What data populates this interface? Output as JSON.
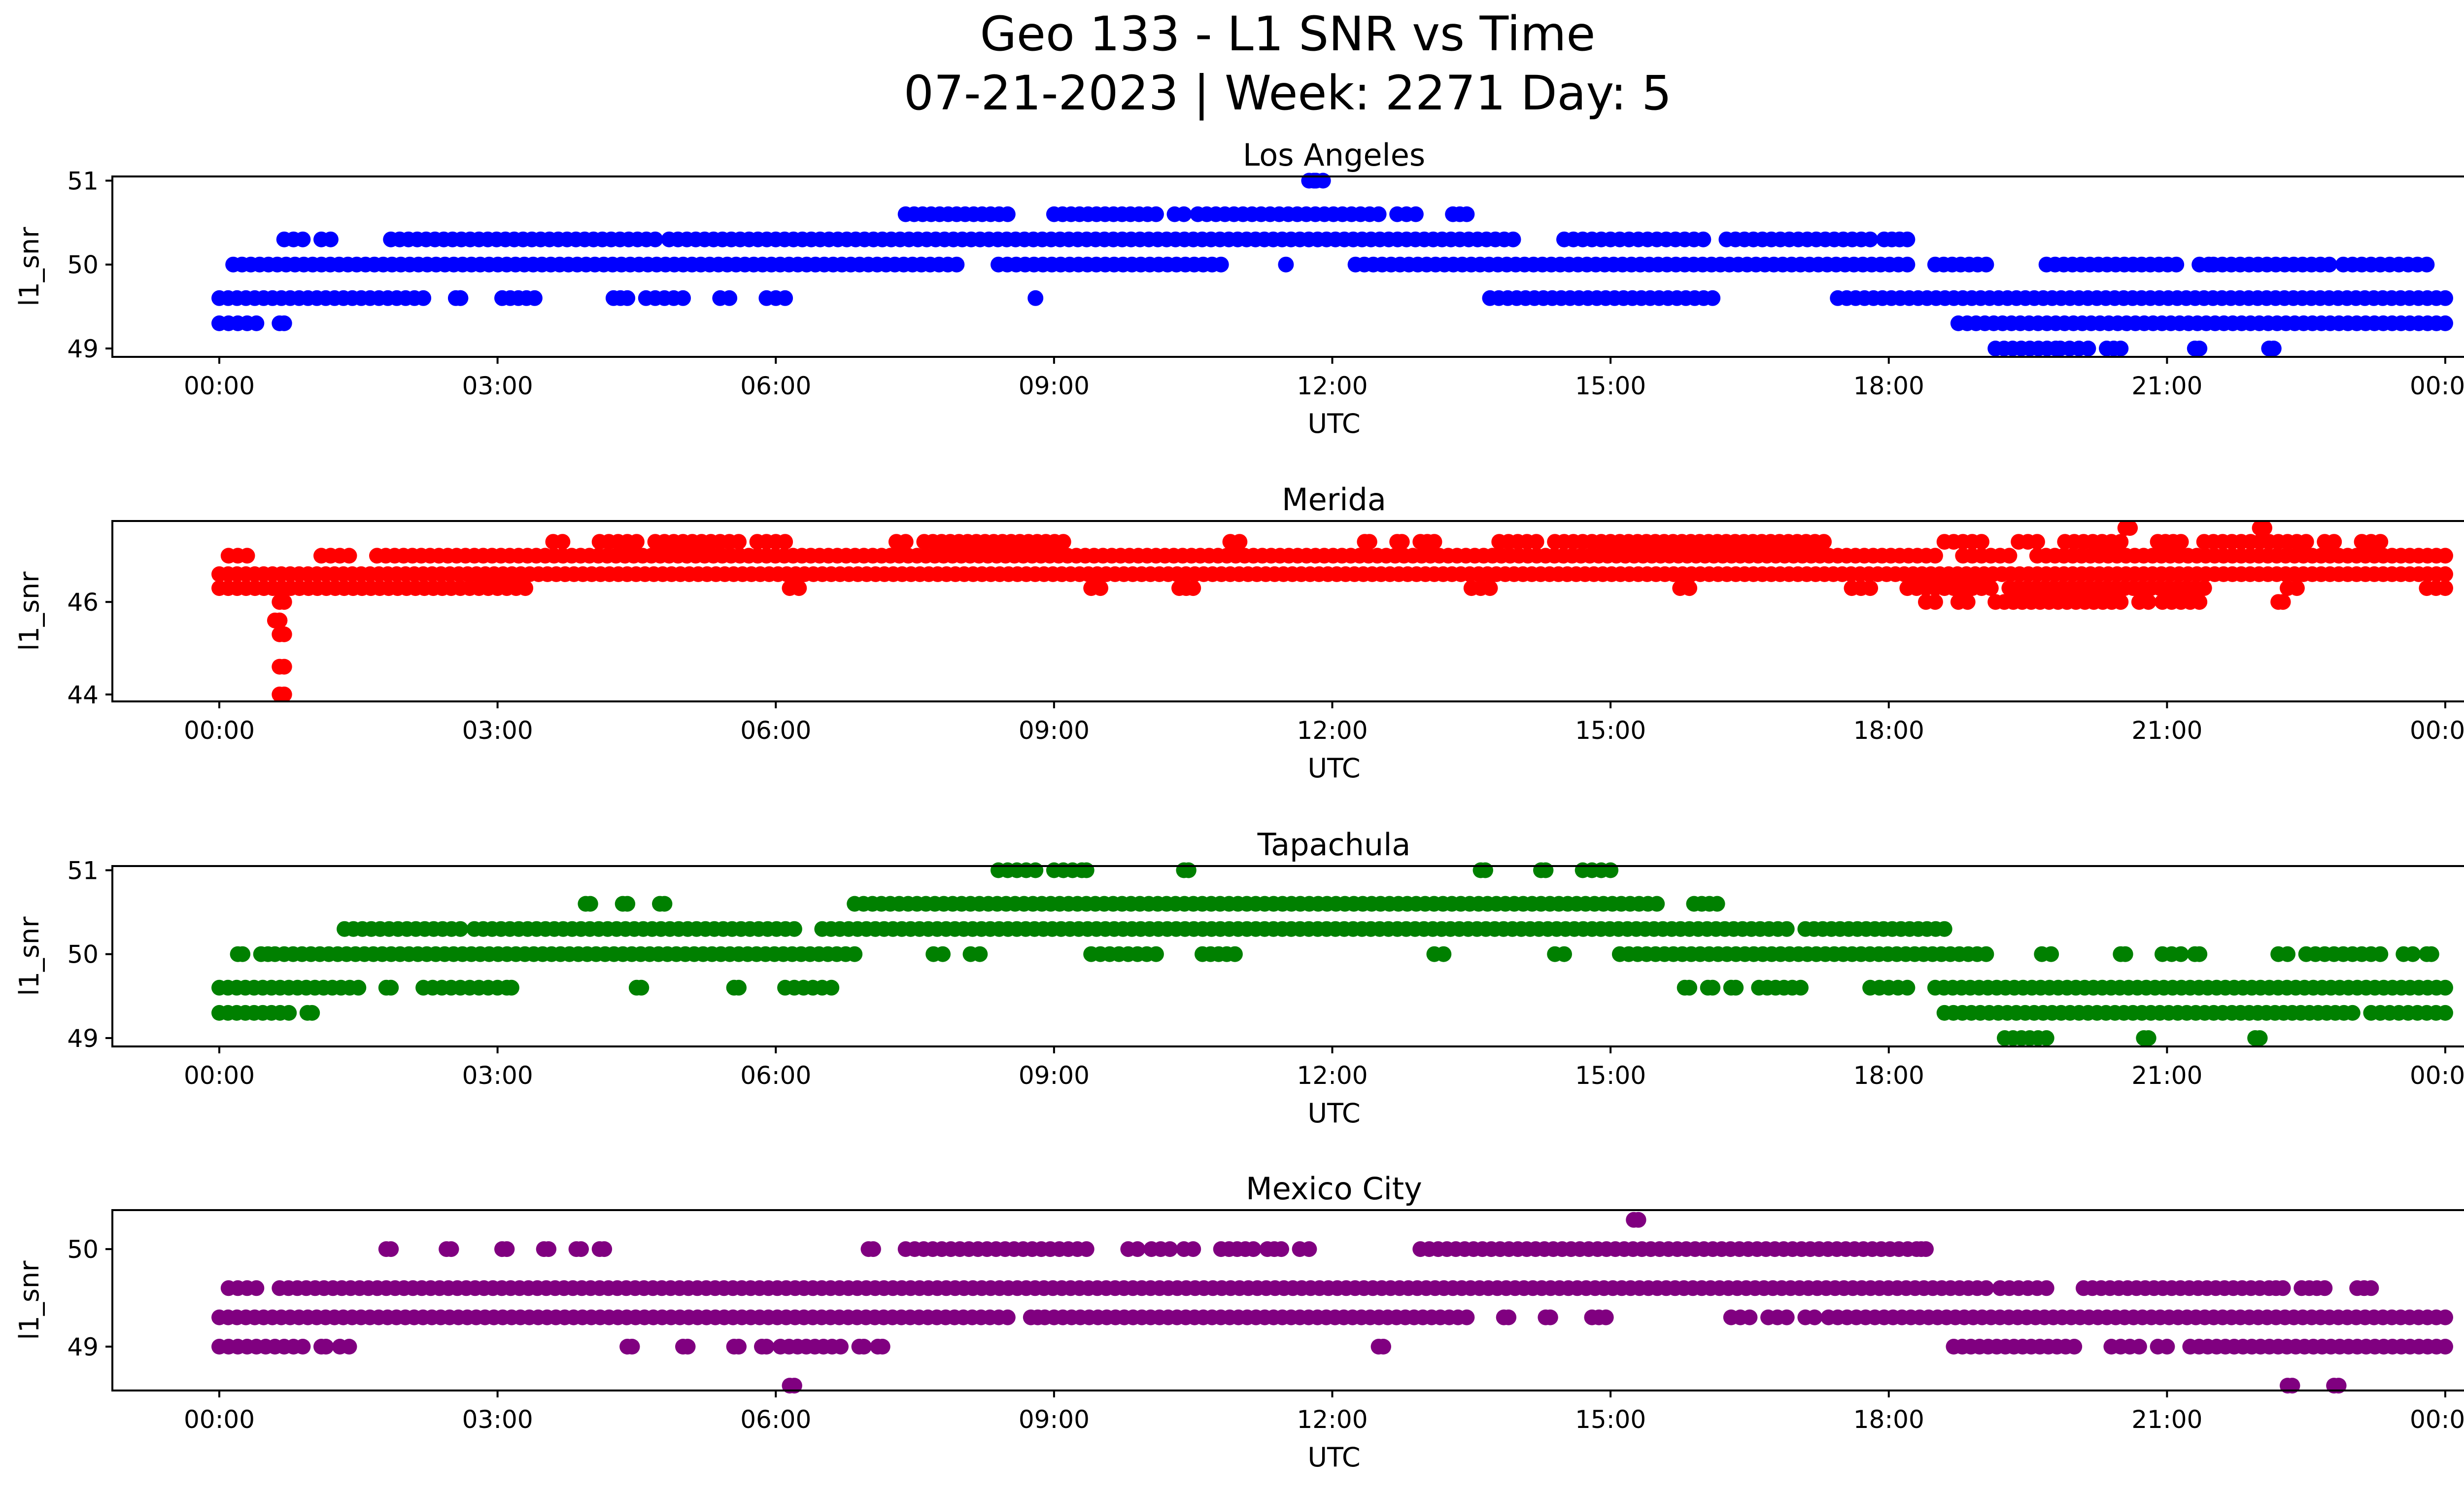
{
  "figure": {
    "title_line1": "Geo 133 - L1 SNR vs Time",
    "title_line2": "07-21-2023 | Week: 2271 Day: 5"
  },
  "chart_data": [
    {
      "type": "scatter",
      "title": "Los Angeles",
      "xlabel": "UTC",
      "ylabel": "l1_snr",
      "color": "#0000ff",
      "xlim": [
        "00:00",
        "24:00"
      ],
      "ylim": [
        48.9,
        51.05
      ],
      "xticks": [
        "00:00",
        "03:00",
        "06:00",
        "09:00",
        "12:00",
        "15:00",
        "18:00",
        "21:00",
        "00:00"
      ],
      "yticks": [
        49,
        50,
        51
      ],
      "bands": [
        {
          "y": 51.0,
          "ranges": [
            [
              11.75,
              11.9
            ]
          ]
        },
        {
          "y": 50.6,
          "ranges": [
            [
              7.4,
              8.5
            ],
            [
              9.0,
              10.1
            ],
            [
              10.3,
              10.4
            ],
            [
              10.55,
              12.5
            ],
            [
              12.7,
              12.9
            ],
            [
              13.3,
              13.45
            ]
          ]
        },
        {
          "y": 50.3,
          "ranges": [
            [
              0.7,
              0.9
            ],
            [
              1.1,
              1.2
            ],
            [
              1.85,
              4.7
            ],
            [
              4.85,
              13.95
            ],
            [
              14.5,
              14.9
            ],
            [
              15.0,
              16.0
            ],
            [
              16.25,
              17.8
            ],
            [
              17.95,
              18.2
            ]
          ]
        },
        {
          "y": 50.0,
          "ranges": [
            [
              0.15,
              7.95
            ],
            [
              8.4,
              10.8
            ],
            [
              12.25,
              18.2
            ],
            [
              18.5,
              19.05
            ],
            [
              19.7,
              21.1
            ],
            [
              21.35,
              21.45
            ],
            [
              21.5,
              22.75
            ],
            [
              22.9,
              23.8
            ]
          ]
        },
        {
          "y": 49.6,
          "ranges": [
            [
              0.0,
              2.2
            ],
            [
              2.55,
              2.6
            ],
            [
              3.05,
              3.4
            ],
            [
              4.25,
              4.4
            ],
            [
              4.6,
              5.0
            ],
            [
              5.4,
              5.5
            ],
            [
              5.9,
              6.1
            ],
            [
              13.7,
              16.1
            ],
            [
              17.45,
              24.0
            ]
          ]
        },
        {
          "y": 49.3,
          "ranges": [
            [
              0.0,
              0.4
            ],
            [
              0.65,
              0.7
            ],
            [
              18.75,
              24.0
            ]
          ]
        },
        {
          "y": 49.0,
          "ranges": [
            [
              19.15,
              19.8
            ],
            [
              19.85,
              20.15
            ],
            [
              20.35,
              20.5
            ],
            [
              21.3,
              21.35
            ],
            [
              22.1,
              22.15
            ]
          ]
        }
      ],
      "singles": [
        [
          11.8,
          51.0
        ],
        [
          8.8,
          49.6
        ],
        [
          2.6,
          49.6
        ],
        [
          11.5,
          50.0
        ]
      ]
    },
    {
      "type": "scatter",
      "title": "Merida",
      "xlabel": "UTC",
      "ylabel": "l1_snr",
      "color": "#ff0000",
      "xlim": [
        "00:00",
        "24:00"
      ],
      "ylim": [
        43.85,
        47.75
      ],
      "xticks": [
        "00:00",
        "03:00",
        "06:00",
        "09:00",
        "12:00",
        "15:00",
        "18:00",
        "21:00",
        "00:00"
      ],
      "yticks": [
        44,
        46
      ],
      "bands": [
        {
          "y": 47.6,
          "ranges": [
            [
              20.55,
              20.6
            ],
            [
              22.0,
              22.05
            ]
          ]
        },
        {
          "y": 47.3,
          "ranges": [
            [
              3.6,
              3.7
            ],
            [
              4.1,
              4.5
            ],
            [
              4.7,
              5.0
            ],
            [
              5.1,
              5.6
            ],
            [
              5.8,
              5.9
            ],
            [
              6.0,
              6.1
            ],
            [
              7.3,
              7.4
            ],
            [
              7.6,
              9.1
            ],
            [
              10.9,
              11.0
            ],
            [
              12.35,
              12.4
            ],
            [
              12.7,
              12.75
            ],
            [
              12.95,
              13.1
            ],
            [
              13.8,
              14.2
            ],
            [
              14.4,
              15.0
            ],
            [
              15.1,
              17.3
            ],
            [
              18.6,
              19.0
            ],
            [
              19.4,
              19.6
            ],
            [
              19.9,
              20.1
            ],
            [
              20.2,
              20.5
            ],
            [
              20.9,
              21.15
            ],
            [
              21.4,
              21.6
            ],
            [
              21.7,
              22.5
            ],
            [
              22.7,
              22.8
            ],
            [
              23.1,
              23.3
            ]
          ]
        },
        {
          "y": 47.0,
          "ranges": [
            [
              0.1,
              0.3
            ],
            [
              1.1,
              1.4
            ],
            [
              1.7,
              18.5
            ],
            [
              18.8,
              19.3
            ],
            [
              19.6,
              24.0
            ]
          ]
        },
        {
          "y": 46.6,
          "ranges": [
            [
              0.0,
              24.0
            ]
          ]
        },
        {
          "y": 46.3,
          "ranges": [
            [
              0.0,
              2.5
            ],
            [
              2.6,
              3.3
            ],
            [
              6.15,
              6.25
            ],
            [
              9.4,
              9.5
            ],
            [
              10.35,
              10.5
            ],
            [
              13.5,
              13.7
            ],
            [
              15.75,
              15.85
            ],
            [
              17.6,
              17.8
            ],
            [
              18.2,
              19.1
            ],
            [
              19.3,
              21.4
            ],
            [
              22.3,
              22.4
            ],
            [
              23.8,
              24.0
            ]
          ]
        },
        {
          "y": 46.0,
          "ranges": [
            [
              0.65,
              0.7
            ],
            [
              18.4,
              18.5
            ],
            [
              18.75,
              18.85
            ],
            [
              19.15,
              20.5
            ],
            [
              20.7,
              20.8
            ],
            [
              20.95,
              21.35
            ],
            [
              22.2,
              22.25
            ]
          ]
        },
        {
          "y": 45.6,
          "ranges": [
            [
              0.6,
              0.65
            ]
          ]
        },
        {
          "y": 45.3,
          "ranges": [
            [
              0.65,
              0.7
            ]
          ]
        },
        {
          "y": 44.6,
          "ranges": [
            [
              0.65,
              0.7
            ]
          ]
        },
        {
          "y": 44.0,
          "ranges": [
            [
              0.65,
              0.7
            ]
          ]
        }
      ],
      "singles": [
        [
          0.65,
          45.6
        ]
      ]
    },
    {
      "type": "scatter",
      "title": "Tapachula",
      "xlabel": "UTC",
      "ylabel": "l1_snr",
      "color": "#008000",
      "xlim": [
        "00:00",
        "24:00"
      ],
      "ylim": [
        48.9,
        51.05
      ],
      "xticks": [
        "00:00",
        "03:00",
        "06:00",
        "09:00",
        "12:00",
        "15:00",
        "18:00",
        "21:00",
        "00:00"
      ],
      "yticks": [
        49,
        50,
        51
      ],
      "bands": [
        {
          "y": 51.0,
          "ranges": [
            [
              8.4,
              8.8
            ],
            [
              9.0,
              9.2
            ],
            [
              9.3,
              9.35
            ],
            [
              10.4,
              10.45
            ],
            [
              13.6,
              13.65
            ],
            [
              14.25,
              14.3
            ],
            [
              14.7,
              15.0
            ]
          ]
        },
        {
          "y": 50.6,
          "ranges": [
            [
              3.95,
              4.0
            ],
            [
              4.35,
              4.4
            ],
            [
              4.75,
              4.8
            ],
            [
              6.85,
              15.5
            ],
            [
              15.9,
              16.15
            ]
          ]
        },
        {
          "y": 50.3,
          "ranges": [
            [
              1.35,
              2.6
            ],
            [
              2.75,
              6.2
            ],
            [
              6.5,
              16.9
            ],
            [
              17.1,
              18.6
            ]
          ]
        },
        {
          "y": 50.0,
          "ranges": [
            [
              0.2,
              0.25
            ],
            [
              0.45,
              0.6
            ],
            [
              0.7,
              6.85
            ],
            [
              7.7,
              7.8
            ],
            [
              8.1,
              8.2
            ],
            [
              9.4,
              10.1
            ],
            [
              10.6,
              10.95
            ],
            [
              13.1,
              13.2
            ],
            [
              14.4,
              14.5
            ],
            [
              15.1,
              19.05
            ],
            [
              19.65,
              19.75
            ],
            [
              20.5,
              20.55
            ],
            [
              20.95,
              21.15
            ],
            [
              21.3,
              21.35
            ],
            [
              22.2,
              22.3
            ],
            [
              22.5,
              23.3
            ],
            [
              23.55,
              23.65
            ],
            [
              23.8,
              23.85
            ]
          ]
        },
        {
          "y": 49.6,
          "ranges": [
            [
              0.0,
              1.5
            ],
            [
              1.8,
              1.85
            ],
            [
              2.2,
              3.0
            ],
            [
              3.1,
              3.15
            ],
            [
              4.5,
              4.55
            ],
            [
              5.55,
              5.6
            ],
            [
              6.1,
              6.6
            ],
            [
              15.8,
              15.85
            ],
            [
              16.05,
              16.1
            ],
            [
              16.3,
              16.35
            ],
            [
              16.6,
              17.05
            ],
            [
              17.8,
              18.2
            ],
            [
              18.5,
              24.0
            ]
          ]
        },
        {
          "y": 49.3,
          "ranges": [
            [
              0.0,
              0.75
            ],
            [
              0.95,
              1.0
            ],
            [
              18.6,
              21.6
            ],
            [
              21.7,
              23.0
            ],
            [
              23.2,
              24.0
            ]
          ]
        },
        {
          "y": 49.0,
          "ranges": [
            [
              19.25,
              19.7
            ],
            [
              20.75,
              20.8
            ],
            [
              21.95,
              22.0
            ]
          ]
        }
      ],
      "singles": []
    },
    {
      "type": "scatter",
      "title": "Mexico City",
      "xlabel": "UTC",
      "ylabel": "l1_snr",
      "color": "#800080",
      "xlim": [
        "00:00",
        "24:00"
      ],
      "ylim": [
        48.55,
        50.4
      ],
      "xticks": [
        "00:00",
        "03:00",
        "06:00",
        "09:00",
        "12:00",
        "15:00",
        "18:00",
        "21:00",
        "00:00"
      ],
      "yticks": [
        49,
        50
      ],
      "bands": [
        {
          "y": 50.3,
          "ranges": [
            [
              15.25,
              15.3
            ]
          ]
        },
        {
          "y": 50.0,
          "ranges": [
            [
              1.8,
              1.85
            ],
            [
              2.45,
              2.5
            ],
            [
              3.05,
              3.1
            ],
            [
              3.5,
              3.55
            ],
            [
              3.85,
              3.9
            ],
            [
              4.1,
              4.15
            ],
            [
              7.0,
              7.05
            ],
            [
              7.4,
              9.35
            ],
            [
              9.8,
              9.9
            ],
            [
              10.05,
              10.25
            ],
            [
              10.4,
              10.5
            ],
            [
              10.8,
              11.15
            ],
            [
              11.3,
              11.45
            ],
            [
              11.65,
              11.75
            ],
            [
              12.95,
              18.3
            ],
            [
              18.35,
              18.4
            ]
          ]
        },
        {
          "y": 49.6,
          "ranges": [
            [
              0.1,
              0.4
            ],
            [
              0.65,
              19.05
            ],
            [
              19.2,
              19.7
            ],
            [
              20.1,
              22.0
            ],
            [
              22.1,
              22.25
            ],
            [
              22.45,
              22.7
            ],
            [
              23.05,
              23.2
            ]
          ]
        },
        {
          "y": 49.3,
          "ranges": [
            [
              0.0,
              8.5
            ],
            [
              8.75,
              8.9
            ],
            [
              9.0,
              13.45
            ],
            [
              13.85,
              13.9
            ],
            [
              14.3,
              14.35
            ],
            [
              14.8,
              14.95
            ],
            [
              16.3,
              16.5
            ],
            [
              16.7,
              16.9
            ],
            [
              17.1,
              17.2
            ],
            [
              17.35,
              17.85
            ],
            [
              17.95,
              24.0
            ]
          ]
        },
        {
          "y": 49.0,
          "ranges": [
            [
              0.0,
              0.9
            ],
            [
              1.1,
              1.15
            ],
            [
              1.3,
              1.4
            ],
            [
              4.4,
              4.45
            ],
            [
              5.0,
              5.05
            ],
            [
              5.55,
              5.6
            ],
            [
              5.85,
              5.9
            ],
            [
              6.05,
              6.7
            ],
            [
              6.9,
              6.95
            ],
            [
              7.1,
              7.15
            ],
            [
              12.5,
              12.55
            ],
            [
              18.7,
              20.0
            ],
            [
              20.4,
              20.7
            ],
            [
              20.9,
              21.0
            ],
            [
              21.25,
              24.0
            ]
          ]
        },
        {
          "y": 48.6,
          "ranges": [
            [
              6.15,
              6.2
            ],
            [
              22.3,
              22.35
            ],
            [
              22.8,
              22.85
            ]
          ]
        }
      ],
      "singles": []
    }
  ]
}
